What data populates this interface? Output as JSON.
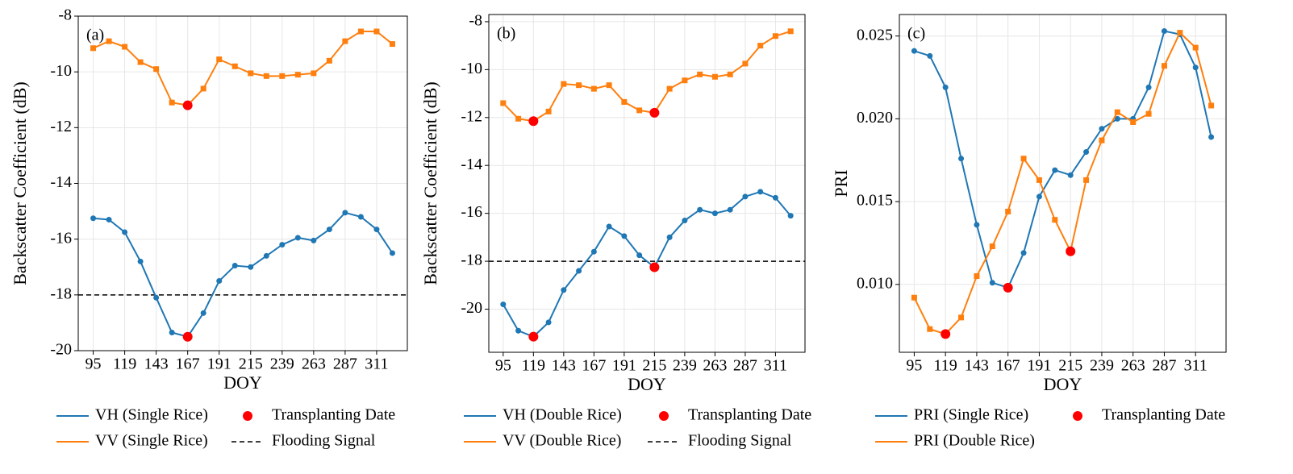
{
  "chart_data": [
    {
      "type": "line",
      "panel_label": "(a)",
      "xlabel": "DOY",
      "ylabel": "Backscatter Coefficient (dB)",
      "grid": true,
      "x": [
        95,
        107,
        119,
        131,
        143,
        155,
        167,
        179,
        191,
        203,
        215,
        227,
        239,
        251,
        263,
        275,
        287,
        299,
        311,
        323
      ],
      "xlim": [
        83.6,
        334.4
      ],
      "xticks": [
        95,
        119,
        143,
        167,
        191,
        215,
        239,
        263,
        287,
        311
      ],
      "ylim": [
        -20,
        -8
      ],
      "yticks": [
        -20,
        -18,
        -16,
        -14,
        -12,
        -10,
        -8
      ],
      "series": [
        {
          "name": "VH (Single Rice)",
          "color": "#1f77b4",
          "marker": "circle",
          "values": [
            -15.25,
            -15.3,
            -15.75,
            -16.8,
            -18.1,
            -19.35,
            -19.5,
            -18.65,
            -17.5,
            -16.95,
            -17.0,
            -16.6,
            -16.2,
            -15.95,
            -16.05,
            -15.65,
            -15.05,
            -15.2,
            -15.65,
            -16.5
          ]
        },
        {
          "name": "VV (Single Rice)",
          "color": "#ff7f0e",
          "marker": "square",
          "values": [
            -9.15,
            -8.9,
            -9.1,
            -9.65,
            -9.9,
            -11.1,
            -11.2,
            -10.6,
            -9.55,
            -9.8,
            -10.05,
            -10.15,
            -10.15,
            -10.1,
            -10.05,
            -9.6,
            -8.9,
            -8.55,
            -8.55,
            -9.0
          ]
        }
      ],
      "transplanting": {
        "name": "Transplanting Date",
        "color": "#ff0000",
        "x": [
          167,
          167
        ],
        "values": [
          -19.5,
          -11.2
        ]
      },
      "flooding": {
        "name": "Flooding Signal",
        "color": "#000000",
        "value": -18
      }
    },
    {
      "type": "line",
      "panel_label": "(b)",
      "xlabel": "DOY",
      "ylabel": "Backscatter Coefficient (dB)",
      "grid": true,
      "x": [
        95,
        107,
        119,
        131,
        143,
        155,
        167,
        179,
        191,
        203,
        215,
        227,
        239,
        251,
        263,
        275,
        287,
        299,
        311,
        323
      ],
      "xlim": [
        83.6,
        334.4
      ],
      "xticks": [
        95,
        119,
        143,
        167,
        191,
        215,
        239,
        263,
        287,
        311
      ],
      "ylim": [
        -21.8,
        -7.7
      ],
      "yticks": [
        -20,
        -18,
        -16,
        -14,
        -12,
        -10,
        -8
      ],
      "series": [
        {
          "name": "VH (Double Rice)",
          "color": "#1f77b4",
          "marker": "circle",
          "values": [
            -19.8,
            -20.9,
            -21.15,
            -20.55,
            -19.2,
            -18.4,
            -17.6,
            -16.55,
            -16.95,
            -17.75,
            -18.25,
            -17.0,
            -16.3,
            -15.85,
            -16.0,
            -15.85,
            -15.3,
            -15.1,
            -15.35,
            -16.1
          ]
        },
        {
          "name": "VV (Double Rice)",
          "color": "#ff7f0e",
          "marker": "square",
          "values": [
            -11.4,
            -12.05,
            -12.15,
            -11.75,
            -10.6,
            -10.65,
            -10.8,
            -10.65,
            -11.35,
            -11.7,
            -11.8,
            -10.8,
            -10.45,
            -10.2,
            -10.3,
            -10.2,
            -9.75,
            -9.0,
            -8.6,
            -8.4
          ]
        }
      ],
      "transplanting": {
        "name": "Transplanting Date",
        "color": "#ff0000",
        "x": [
          119,
          119,
          215,
          215
        ],
        "values": [
          -21.15,
          -12.15,
          -18.25,
          -11.8
        ]
      },
      "flooding": {
        "name": "Flooding Signal",
        "color": "#000000",
        "value": -18
      }
    },
    {
      "type": "line",
      "panel_label": "(c)",
      "xlabel": "DOY",
      "ylabel": "PRI",
      "grid": true,
      "x": [
        95,
        107,
        119,
        131,
        143,
        155,
        167,
        179,
        191,
        203,
        215,
        227,
        239,
        251,
        263,
        275,
        287,
        299,
        311,
        323
      ],
      "xlim": [
        83.6,
        334.4
      ],
      "xticks": [
        95,
        119,
        143,
        167,
        191,
        215,
        239,
        263,
        287,
        311
      ],
      "ylim": [
        0.0059,
        0.0263
      ],
      "yticks": [
        {
          "value": 0.01,
          "label": "0.010"
        },
        {
          "value": 0.015,
          "label": "0.015"
        },
        {
          "value": 0.02,
          "label": "0.020"
        },
        {
          "value": 0.025,
          "label": "0.025"
        }
      ],
      "series": [
        {
          "name": "PRI (Single Rice)",
          "color": "#1f77b4",
          "marker": "circle",
          "values": [
            0.0241,
            0.0238,
            0.0219,
            0.0176,
            0.0136,
            0.0101,
            0.0098,
            0.0119,
            0.0153,
            0.0169,
            0.0166,
            0.018,
            0.0194,
            0.02,
            0.02,
            0.0219,
            0.0253,
            0.0251,
            0.0231,
            0.0189
          ]
        },
        {
          "name": "PRI (Double Rice)",
          "color": "#ff7f0e",
          "marker": "square",
          "values": [
            0.0092,
            0.0073,
            0.007,
            0.008,
            0.0105,
            0.0123,
            0.0144,
            0.0176,
            0.0163,
            0.0139,
            0.012,
            0.0163,
            0.0187,
            0.0204,
            0.0198,
            0.0203,
            0.0232,
            0.0252,
            0.0243,
            0.0208
          ]
        }
      ],
      "transplanting": {
        "name": "Transplanting Date",
        "color": "#ff0000",
        "x": [
          119,
          167,
          215
        ],
        "values": [
          0.007,
          0.0098,
          0.012
        ]
      }
    }
  ]
}
